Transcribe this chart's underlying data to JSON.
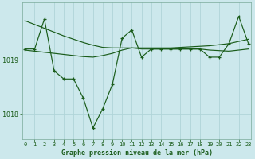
{
  "title": "Graphe pression niveau de la mer (hPa)",
  "background_color": "#cce8ec",
  "plot_bg_color": "#cce8ec",
  "grid_color": "#b0d4d8",
  "line_color": "#1a5c1a",
  "x_labels": [
    "0",
    "1",
    "2",
    "3",
    "4",
    "5",
    "6",
    "7",
    "8",
    "9",
    "10",
    "11",
    "12",
    "13",
    "14",
    "15",
    "16",
    "17",
    "18",
    "19",
    "20",
    "21",
    "22",
    "23"
  ],
  "ylim": [
    1017.55,
    1020.05
  ],
  "yticks": [
    1018,
    1019
  ],
  "main": [
    1019.2,
    1019.2,
    1019.75,
    1018.8,
    1018.65,
    1018.65,
    1018.3,
    1017.75,
    1018.1,
    1018.55,
    1019.4,
    1019.55,
    1019.05,
    1019.2,
    1019.2,
    1019.2,
    1019.2,
    1019.2,
    1019.2,
    1019.05,
    1019.05,
    1019.3,
    1019.8,
    1019.3
  ],
  "upper": [
    1019.72,
    1019.65,
    1019.58,
    1019.51,
    1019.44,
    1019.38,
    1019.32,
    1019.27,
    1019.23,
    1019.22,
    1019.22,
    1019.22,
    1019.22,
    1019.22,
    1019.22,
    1019.22,
    1019.23,
    1019.24,
    1019.25,
    1019.26,
    1019.28,
    1019.3,
    1019.34,
    1019.38
  ],
  "lower": [
    1019.18,
    1019.16,
    1019.14,
    1019.12,
    1019.1,
    1019.08,
    1019.06,
    1019.05,
    1019.08,
    1019.12,
    1019.18,
    1019.22,
    1019.2,
    1019.2,
    1019.2,
    1019.2,
    1019.2,
    1019.2,
    1019.2,
    1019.18,
    1019.17,
    1019.16,
    1019.18,
    1019.2
  ]
}
